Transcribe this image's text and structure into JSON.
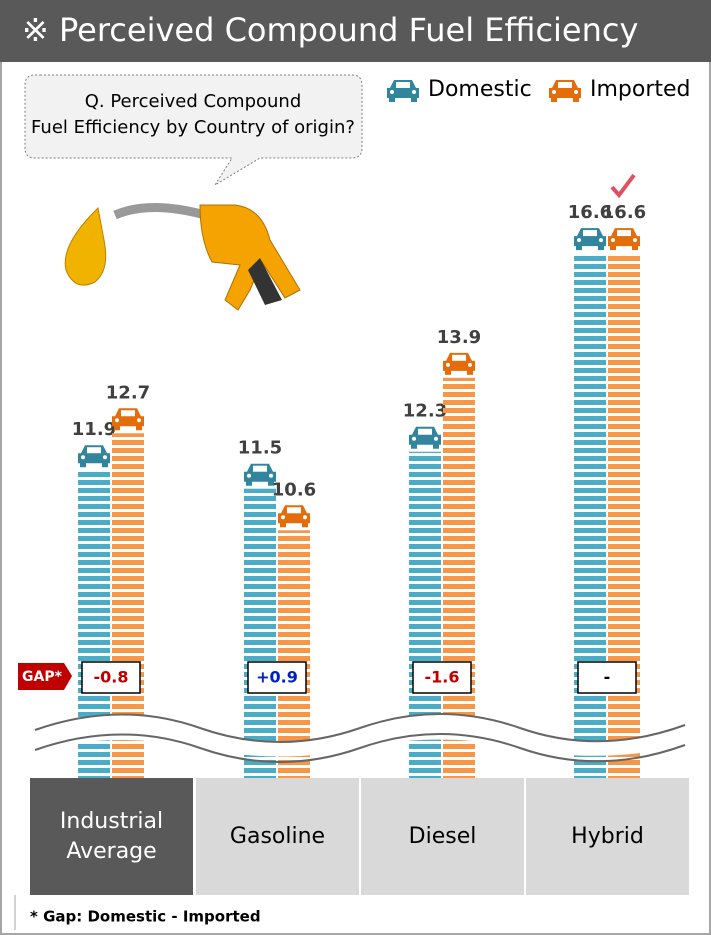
{
  "chart_data": {
    "type": "bar",
    "title": "※ Perceived Compound Fuel Efficiency",
    "question": [
      "Q. Perceived Compound",
      "Fuel Efficiency by Country of origin?"
    ],
    "categories": [
      "Industrial Average",
      "Gasoline",
      "Diesel",
      "Hybrid"
    ],
    "series": [
      {
        "name": "Domestic",
        "color": "#31859c",
        "values": [
          11.9,
          11.5,
          12.3,
          16.6
        ]
      },
      {
        "name": "Imported",
        "color": "#e46c0a",
        "values": [
          12.7,
          10.6,
          13.9,
          16.6
        ]
      }
    ],
    "gap": {
      "label": "GAP*",
      "values": [
        "-0.8",
        "+0.9",
        "-1.6",
        "-"
      ],
      "colors": [
        "#c00000",
        "#0020c0",
        "#c00000",
        "#000000"
      ]
    },
    "footnote": "* Gap: Domestic - Imported"
  }
}
